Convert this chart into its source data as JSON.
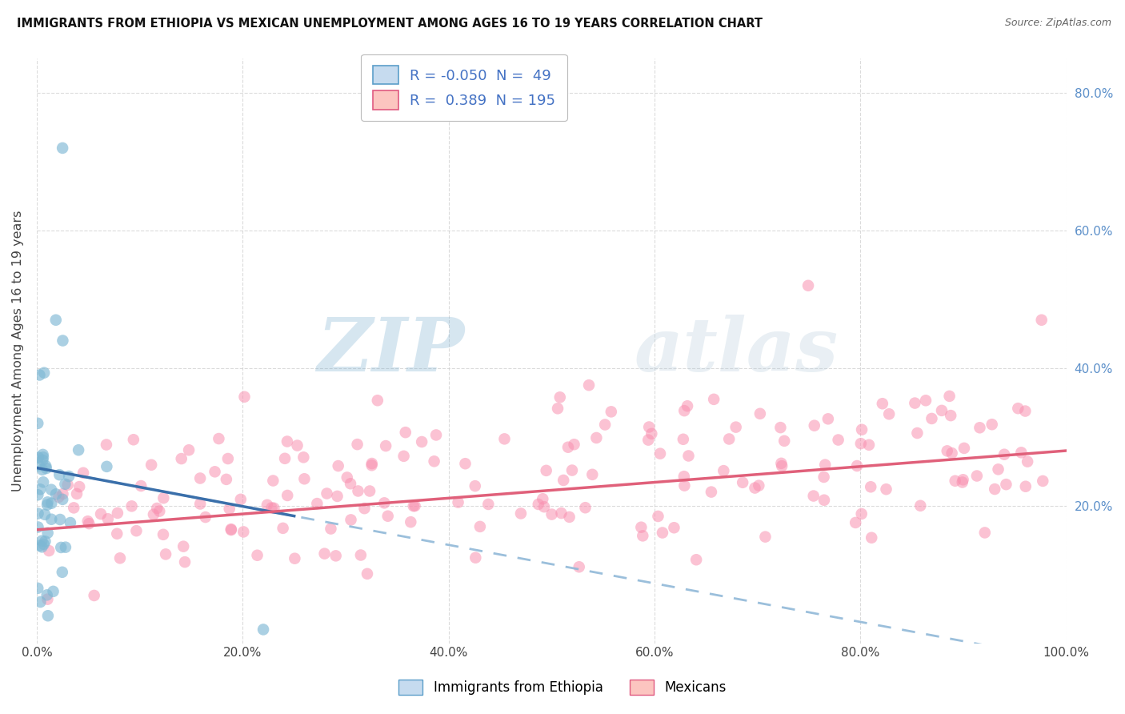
{
  "title": "IMMIGRANTS FROM ETHIOPIA VS MEXICAN UNEMPLOYMENT AMONG AGES 16 TO 19 YEARS CORRELATION CHART",
  "source": "Source: ZipAtlas.com",
  "ylabel": "Unemployment Among Ages 16 to 19 years",
  "xlim": [
    0.0,
    1.0
  ],
  "ylim": [
    0.0,
    0.85
  ],
  "xtick_labels": [
    "0.0%",
    "20.0%",
    "40.0%",
    "60.0%",
    "80.0%",
    "100.0%"
  ],
  "xtick_positions": [
    0.0,
    0.2,
    0.4,
    0.6,
    0.8,
    1.0
  ],
  "right_ytick_labels": [
    "20.0%",
    "40.0%",
    "60.0%",
    "80.0%"
  ],
  "right_ytick_positions": [
    0.2,
    0.4,
    0.6,
    0.8
  ],
  "watermark_zip": "ZIP",
  "watermark_atlas": "atlas",
  "legend_R1": "-0.050",
  "legend_N1": "49",
  "legend_R2": "0.389",
  "legend_N2": "195",
  "legend_label1": "Immigrants from Ethiopia",
  "legend_label2": "Mexicans",
  "blue_scatter_color": "#7eb8d4",
  "blue_edge_color": "#5b9ec9",
  "blue_fill": "#c6dbef",
  "pink_scatter_color": "#f990b0",
  "pink_edge_color": "#e05a80",
  "pink_fill": "#fcc5c0",
  "trend_blue_color": "#3a6faa",
  "trend_pink_color": "#e0607a",
  "trend_dashed_color": "#90b8d8",
  "background_color": "#ffffff",
  "grid_color": "#cccccc",
  "ethiopia_seed": 77,
  "mexican_seed": 42
}
